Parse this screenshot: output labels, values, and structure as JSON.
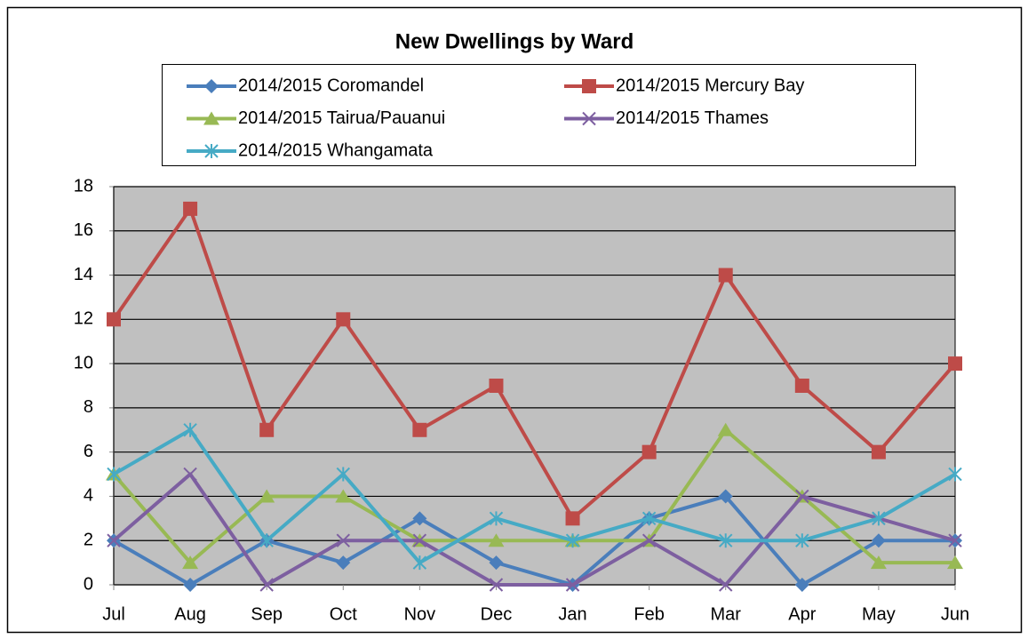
{
  "chart_data": {
    "type": "line",
    "title": "New Dwellings by Ward",
    "categories": [
      "Jul",
      "Aug",
      "Sep",
      "Oct",
      "Nov",
      "Dec",
      "Jan",
      "Feb",
      "Mar",
      "Apr",
      "May",
      "Jun"
    ],
    "series": [
      {
        "name": "2014/2015 Coromandel",
        "color": "#4a7ebb",
        "marker": "diamond",
        "values": [
          2,
          0,
          2,
          1,
          3,
          1,
          0,
          3,
          4,
          0,
          2,
          2
        ]
      },
      {
        "name": "2014/2015 Mercury Bay",
        "color": "#be4b48",
        "marker": "square",
        "values": [
          12,
          17,
          7,
          12,
          7,
          9,
          3,
          6,
          14,
          9,
          6,
          10
        ]
      },
      {
        "name": "2014/2015 Tairua/Pauanui",
        "color": "#98b954",
        "marker": "triangle",
        "values": [
          5,
          1,
          4,
          4,
          2,
          2,
          2,
          2,
          7,
          4,
          1,
          1
        ]
      },
      {
        "name": "2014/2015 Thames",
        "color": "#7d5fa0",
        "marker": "x",
        "values": [
          2,
          5,
          0,
          2,
          2,
          0,
          0,
          2,
          0,
          4,
          3,
          2
        ]
      },
      {
        "name": "2014/2015 Whangamata",
        "color": "#46aac5",
        "marker": "star",
        "values": [
          5,
          7,
          2,
          5,
          1,
          3,
          2,
          3,
          2,
          2,
          3,
          5
        ]
      }
    ],
    "ylim": [
      0,
      18
    ],
    "yticks": [
      0,
      2,
      4,
      6,
      8,
      10,
      12,
      14,
      16,
      18
    ],
    "grid": true,
    "legend": "top"
  }
}
